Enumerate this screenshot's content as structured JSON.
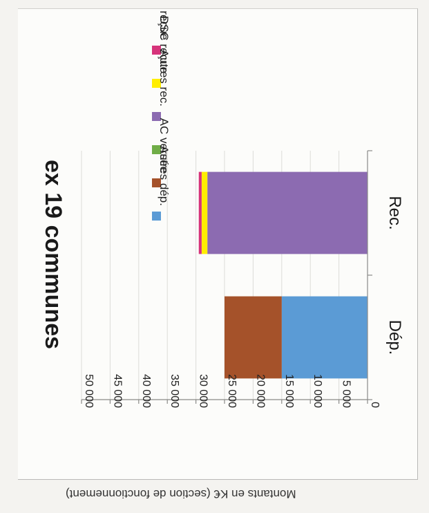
{
  "chart_data": {
    "type": "bar",
    "stacked": true,
    "orientation": "rotated-90",
    "title": "ex 19 communes",
    "ylabel": "Montants en K€ (section de fonctionnement)",
    "categories": [
      "Dép.",
      "Rec."
    ],
    "ylim": [
      0,
      50000
    ],
    "y_ticks": [
      "0",
      "5 000",
      "10 000",
      "15 000",
      "20 000",
      "25 000",
      "30 000",
      "35 000",
      "40 000",
      "45 000",
      "50 000"
    ],
    "grid": true,
    "legend_position": "right",
    "series": [
      {
        "name": "Autres dép.",
        "color": "#5b9bd5",
        "values": [
          15000,
          0
        ]
      },
      {
        "name": "AC versée",
        "color": "#a5522a",
        "values": [
          10000,
          0
        ]
      },
      {
        "name": "",
        "color": "#70ad47",
        "values": [
          0,
          0
        ]
      },
      {
        "name": "Autres rec.",
        "color": "#8c6bb1",
        "values": [
          0,
          28000
        ]
      },
      {
        "name": "DSC reçue",
        "color": "#ffee00",
        "values": [
          0,
          1000
        ]
      },
      {
        "name": "AC reçue",
        "color": "#d6337a",
        "values": [
          0,
          500
        ]
      }
    ]
  }
}
